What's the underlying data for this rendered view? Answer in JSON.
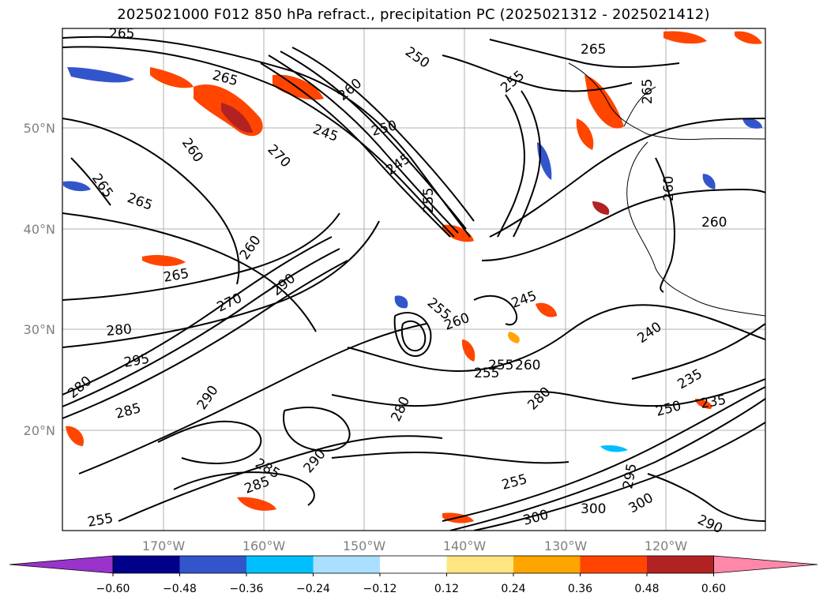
{
  "title": "2025021000 F012 850 hPa refract., precipitation PC (2025021312 - 2025021412)",
  "map": {
    "lat_labels": [
      "50°N",
      "40°N",
      "30°N",
      "20°N"
    ],
    "lon_labels": [
      "170°W",
      "160°W",
      "150°W",
      "140°W",
      "130°W",
      "120°W"
    ],
    "contour_labels": [
      "265",
      "250",
      "265",
      "260",
      "245",
      "250",
      "255",
      "265",
      "260",
      "265",
      "270",
      "245",
      "260",
      "265",
      "255",
      "265",
      "260",
      "260",
      "265",
      "245",
      "270",
      "290",
      "255",
      "280",
      "260",
      "255",
      "260",
      "295",
      "255",
      "280",
      "285",
      "290",
      "280",
      "285",
      "285",
      "290",
      "240",
      "235",
      "250",
      "235",
      "295",
      "255",
      "300",
      "300",
      "300",
      "255",
      "290",
      "280"
    ]
  },
  "colorbar": {
    "tick_labels": [
      "−0.60",
      "−0.48",
      "−0.36",
      "−0.24",
      "−0.12",
      "0.12",
      "0.24",
      "0.36",
      "0.48",
      "0.60"
    ],
    "colors": [
      "#9933cc",
      "#00008b",
      "#3355cc",
      "#00bfff",
      "#aadfff",
      "#ffffff",
      "#ffe680",
      "#ffa500",
      "#ff4500",
      "#b22222",
      "#ff88aa"
    ]
  }
}
